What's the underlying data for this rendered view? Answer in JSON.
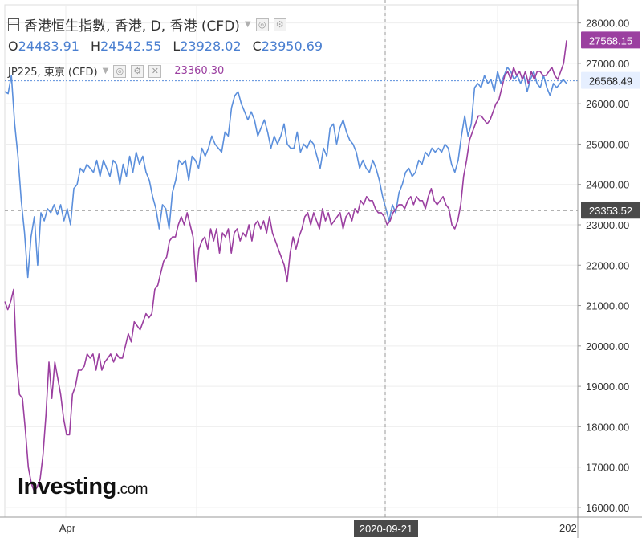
{
  "legend": {
    "main_title": "香港恒生指數, 香港, D, 香港 (CFD)",
    "ohlc": [
      {
        "key": "O",
        "value": "24483.91"
      },
      {
        "key": "H",
        "value": "24542.55"
      },
      {
        "key": "L",
        "value": "23928.02"
      },
      {
        "key": "C",
        "value": "23950.69"
      }
    ],
    "overlay_title": "JP225, 東京 (CFD)",
    "overlay_value": "23360.30"
  },
  "brand": {
    "main": "Investing",
    "suffix": ".com"
  },
  "colors": {
    "hsi": "#5b8fdc",
    "jp225": "#9b3fa0",
    "grid": "#eeeeee",
    "crosshair": "#999999",
    "price_line": "#5b8fdc"
  },
  "chart_data": {
    "type": "line",
    "x_labels": [
      "Apr",
      "2020-09-21",
      "202"
    ],
    "y_ticks": [
      "28000.00",
      "27000.00",
      "26000.00",
      "25000.00",
      "24000.00",
      "23000.00",
      "22000.00",
      "21000.00",
      "20000.00",
      "19000.00",
      "18000.00",
      "17000.00",
      "16000.00"
    ],
    "ylim": [
      15760,
      28450
    ],
    "grid": true,
    "crosshair": {
      "x_label": "2020-09-21",
      "y_label": "23353.52",
      "y": 23353.52
    },
    "price_labels": [
      {
        "series": "JP225",
        "value": "27568.15",
        "y": 27568.15
      },
      {
        "series": "HSI",
        "value": "26568.49",
        "y": 26568.49
      }
    ],
    "series": [
      {
        "name": "香港恒生指數",
        "values": [
          26300,
          26250,
          26700,
          25500,
          24700,
          23600,
          22800,
          21700,
          22700,
          23200,
          22000,
          23300,
          23100,
          23400,
          23300,
          23500,
          23250,
          23500,
          23100,
          23400,
          23000,
          23900,
          24000,
          24400,
          24300,
          24500,
          24400,
          24300,
          24600,
          24200,
          24600,
          24400,
          24200,
          24600,
          24500,
          24000,
          24500,
          24200,
          24700,
          24300,
          24800,
          24500,
          24700,
          24300,
          24100,
          23700,
          23400,
          22900,
          23500,
          23400,
          22900,
          23800,
          24100,
          24600,
          24500,
          24600,
          24100,
          24700,
          24600,
          24400,
          24900,
          24700,
          24900,
          25200,
          25000,
          24900,
          24800,
          25300,
          25200,
          25900,
          26200,
          26300,
          26000,
          25800,
          25600,
          25800,
          25600,
          25200,
          25400,
          25600,
          25300,
          24900,
          25200,
          25000,
          25200,
          25500,
          25000,
          24900,
          24900,
          25300,
          24800,
          25000,
          24900,
          25100,
          25000,
          24700,
          24400,
          24900,
          24700,
          25400,
          25500,
          25000,
          25400,
          25600,
          25300,
          25100,
          25000,
          24800,
          24400,
          24600,
          24400,
          24300,
          24600,
          24400,
          24100,
          23700,
          23400,
          23100,
          23500,
          23300,
          23800,
          24000,
          24300,
          24400,
          24200,
          24300,
          24600,
          24500,
          24800,
          24700,
          24900,
          24800,
          24900,
          24800,
          25000,
          24900,
          24500,
          24300,
          24600,
          25200,
          25700,
          25200,
          25500,
          26400,
          26500,
          26400,
          26700,
          26500,
          26600,
          26300,
          26800,
          26500,
          26700,
          26900,
          26800,
          26600,
          26700,
          26500,
          26700,
          26300,
          26600,
          26800,
          26500,
          26400,
          26700,
          26400,
          26200,
          26500,
          26400,
          26500,
          26600,
          26500
        ],
        "color": "#5b8fdc"
      },
      {
        "name": "JP225",
        "values": [
          21100,
          20900,
          21100,
          21400,
          19600,
          18800,
          18700,
          17900,
          17000,
          16600,
          16400,
          16500,
          16700,
          17300,
          18300,
          19600,
          18700,
          19600,
          19200,
          18800,
          18200,
          17800,
          17800,
          18800,
          19000,
          19400,
          19400,
          19500,
          19800,
          19700,
          19800,
          19400,
          19800,
          19400,
          19600,
          19700,
          19800,
          19600,
          19800,
          19700,
          19700,
          20000,
          20300,
          20100,
          20600,
          20500,
          20400,
          20600,
          20800,
          20700,
          20800,
          21400,
          21500,
          21800,
          22100,
          22200,
          22600,
          22700,
          22700,
          23000,
          23200,
          23000,
          23300,
          23000,
          22700,
          21600,
          22400,
          22600,
          22700,
          22400,
          22900,
          22600,
          22900,
          22300,
          22800,
          22700,
          22900,
          22300,
          22800,
          22900,
          22600,
          22800,
          22700,
          23000,
          22600,
          23000,
          23100,
          22900,
          23100,
          22800,
          23200,
          22800,
          22600,
          22400,
          22200,
          22000,
          21600,
          22300,
          22700,
          22400,
          22700,
          22900,
          23200,
          23300,
          23000,
          23300,
          23100,
          22900,
          23400,
          23100,
          23300,
          23000,
          23100,
          23200,
          23300,
          22900,
          23200,
          23300,
          23100,
          23400,
          23300,
          23600,
          23500,
          23700,
          23600,
          23600,
          23400,
          23300,
          23300,
          23200,
          23000,
          23100,
          23300,
          23400,
          23500,
          23500,
          23400,
          23600,
          23700,
          23500,
          23700,
          23600,
          23600,
          23400,
          23700,
          23900,
          23600,
          23500,
          23600,
          23700,
          23500,
          23400,
          23000,
          22900,
          23100,
          23500,
          24200,
          24600,
          25100,
          25300,
          25500,
          25700,
          25700,
          25600,
          25500,
          25600,
          25800,
          26000,
          26100,
          26400,
          26700,
          26800,
          26600,
          26900,
          26700,
          26800,
          26600,
          26800,
          26500,
          26800,
          26600,
          26800,
          26800,
          26700,
          26700,
          26800,
          26900,
          26700,
          26600,
          26800,
          27000,
          27568
        ],
        "color": "#9b3fa0"
      }
    ]
  }
}
